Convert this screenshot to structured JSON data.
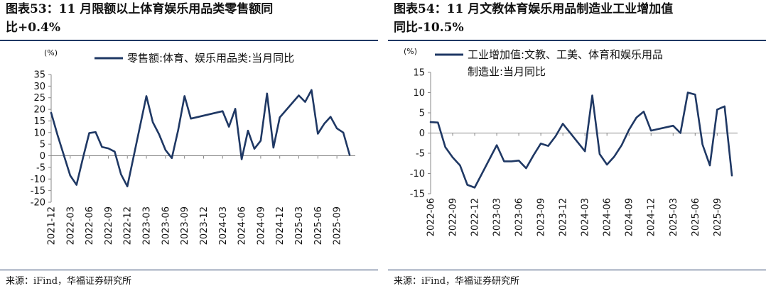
{
  "figures": [
    {
      "title_line1": "图表53：11 月限额以上体育娱乐用品类零售额同",
      "title_line2": "比+0.4%",
      "source": "来源：iFind，华福证券研究所"
    },
    {
      "title_line1": "图表54：11 月文教体育娱乐用品制造业工业增加值",
      "title_line2": "同比-10.5%",
      "source": "来源：iFind，华福证券研究所"
    }
  ],
  "chart_data": [
    {
      "type": "line",
      "unit_label": "(%)",
      "color": "#1f3864",
      "ylim": [
        -20,
        35
      ],
      "yticks": [
        35,
        30,
        25,
        20,
        15,
        10,
        5,
        0,
        -5,
        -10,
        -15,
        -20
      ],
      "xtick_labels": [
        "2021-12",
        "2022-03",
        "2022-06",
        "2022-09",
        "2022-12",
        "2023-03",
        "2023-06",
        "2023-09",
        "2023-12",
        "2024-03",
        "2024-06",
        "2024-09",
        "2024-12",
        "2025-03",
        "2025-06",
        "2025-09"
      ],
      "series": [
        {
          "name": "零售额:体育、娱乐用品类:当月同比",
          "x": [
            "2021-12",
            "2022-01",
            "2022-03",
            "2022-04",
            "2022-05",
            "2022-06",
            "2022-07",
            "2022-08",
            "2022-09",
            "2022-10",
            "2022-11",
            "2022-12",
            "2023-03",
            "2023-04",
            "2023-05",
            "2023-06",
            "2023-07",
            "2023-08",
            "2023-09",
            "2023-10",
            "2024-03",
            "2024-04",
            "2024-05",
            "2024-06",
            "2024-07",
            "2024-08",
            "2024-09",
            "2024-10",
            "2024-11",
            "2024-12",
            "2025-03",
            "2025-04",
            "2025-05",
            "2025-06",
            "2025-07",
            "2025-08",
            "2025-09",
            "2025-10",
            "2025-11"
          ],
          "values": [
            18.5,
            9,
            -8.5,
            -12.5,
            -1,
            9.8,
            10.2,
            3.8,
            3.2,
            1.8,
            -8,
            -13.2,
            25.7,
            14.5,
            9.2,
            2.5,
            -1,
            11,
            25.7,
            16,
            19.2,
            12.5,
            20.2,
            -1.5,
            10.8,
            3,
            6.5,
            26.8,
            3.5,
            16.5,
            26,
            23.2,
            28.3,
            9.5,
            13.8,
            16.8,
            11.8,
            10,
            0.4
          ]
        }
      ]
    },
    {
      "type": "line",
      "unit_label": "(%)",
      "color": "#1f3864",
      "ylim": [
        -15,
        15
      ],
      "yticks": [
        15,
        10,
        5,
        0,
        -5,
        -10,
        -15
      ],
      "xtick_labels": [
        "2022-06",
        "2022-09",
        "2022-12",
        "2023-03",
        "2023-06",
        "2023-09",
        "2023-12",
        "2024-03",
        "2024-06",
        "2024-09",
        "2024-12",
        "2025-03",
        "2025-06",
        "2025-09"
      ],
      "series": [
        {
          "name_line1": "工业增加值:文教、工美、体育和娱乐用品",
          "name_line2": "制造业:当月同比",
          "x": [
            "2022-06",
            "2022-07",
            "2022-08",
            "2022-09",
            "2022-10",
            "2022-11",
            "2022-12",
            "2023-03",
            "2023-04",
            "2023-05",
            "2023-06",
            "2023-07",
            "2023-08",
            "2023-09",
            "2023-10",
            "2023-11",
            "2023-12",
            "2024-03",
            "2024-04",
            "2024-05",
            "2024-06",
            "2024-07",
            "2024-08",
            "2024-09",
            "2024-10",
            "2024-11",
            "2024-12",
            "2025-03",
            "2025-04",
            "2025-05",
            "2025-06",
            "2025-07",
            "2025-08",
            "2025-09",
            "2025-10",
            "2025-11"
          ],
          "values": [
            2.7,
            2.6,
            -3.5,
            -6,
            -8,
            -12.8,
            -13.5,
            -3,
            -7,
            -7,
            -6.8,
            -8.7,
            -5.5,
            -2.6,
            -3.2,
            -0.8,
            2.3,
            -4.5,
            9.3,
            -5.2,
            -7.8,
            -5.8,
            -3,
            0.8,
            3.8,
            5.3,
            0.6,
            1.8,
            0,
            10,
            9.5,
            -2.8,
            -8,
            5.8,
            6.6,
            -10.5
          ]
        }
      ]
    }
  ]
}
